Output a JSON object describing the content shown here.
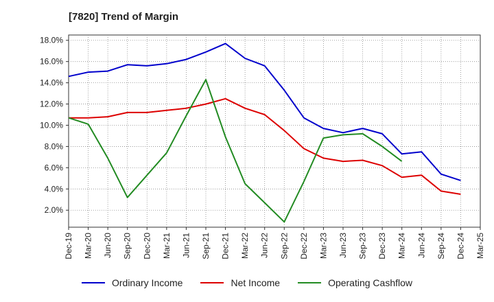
{
  "chart_data": {
    "type": "line",
    "title": "[7820]  Trend of Margin",
    "x": [
      "Dec-19",
      "Mar-20",
      "Jun-20",
      "Sep-20",
      "Dec-20",
      "Mar-21",
      "Jun-21",
      "Sep-21",
      "Dec-21",
      "Mar-22",
      "Jun-22",
      "Sep-22",
      "Dec-22",
      "Mar-23",
      "Jun-23",
      "Sep-23",
      "Dec-23",
      "Mar-24",
      "Jun-24",
      "Sep-24",
      "Dec-24",
      "Mar-25"
    ],
    "xlabel": "",
    "ylabel": "",
    "ylim": [
      0.4,
      18.5
    ],
    "y_ticks": [
      "2.0%",
      "4.0%",
      "6.0%",
      "8.0%",
      "10.0%",
      "12.0%",
      "14.0%",
      "16.0%",
      "18.0%"
    ],
    "y_tick_values": [
      2,
      4,
      6,
      8,
      10,
      12,
      14,
      16,
      18
    ],
    "grid": true,
    "legend_position": "bottom",
    "series": [
      {
        "name": "Ordinary Income",
        "color": "#0000cc",
        "values": [
          14.6,
          15.0,
          15.1,
          15.7,
          15.6,
          15.8,
          16.2,
          16.9,
          17.7,
          16.3,
          15.6,
          13.3,
          10.7,
          9.7,
          9.3,
          9.7,
          9.2,
          7.3,
          7.5,
          5.4,
          4.8,
          null
        ]
      },
      {
        "name": "Net Income",
        "color": "#dd0000",
        "values": [
          10.7,
          10.7,
          10.8,
          11.2,
          11.2,
          11.4,
          11.6,
          12.0,
          12.5,
          11.6,
          11.0,
          9.5,
          7.8,
          6.9,
          6.6,
          6.7,
          6.2,
          5.1,
          5.3,
          3.8,
          3.5,
          null
        ]
      },
      {
        "name": "Operating Cashflow",
        "color": "#228b22",
        "values": [
          10.7,
          10.1,
          6.9,
          3.2,
          5.3,
          7.4,
          10.9,
          14.3,
          8.9,
          4.5,
          2.7,
          0.9,
          4.7,
          8.8,
          9.1,
          9.2,
          8.0,
          6.6,
          null,
          null,
          null,
          null
        ]
      }
    ]
  }
}
